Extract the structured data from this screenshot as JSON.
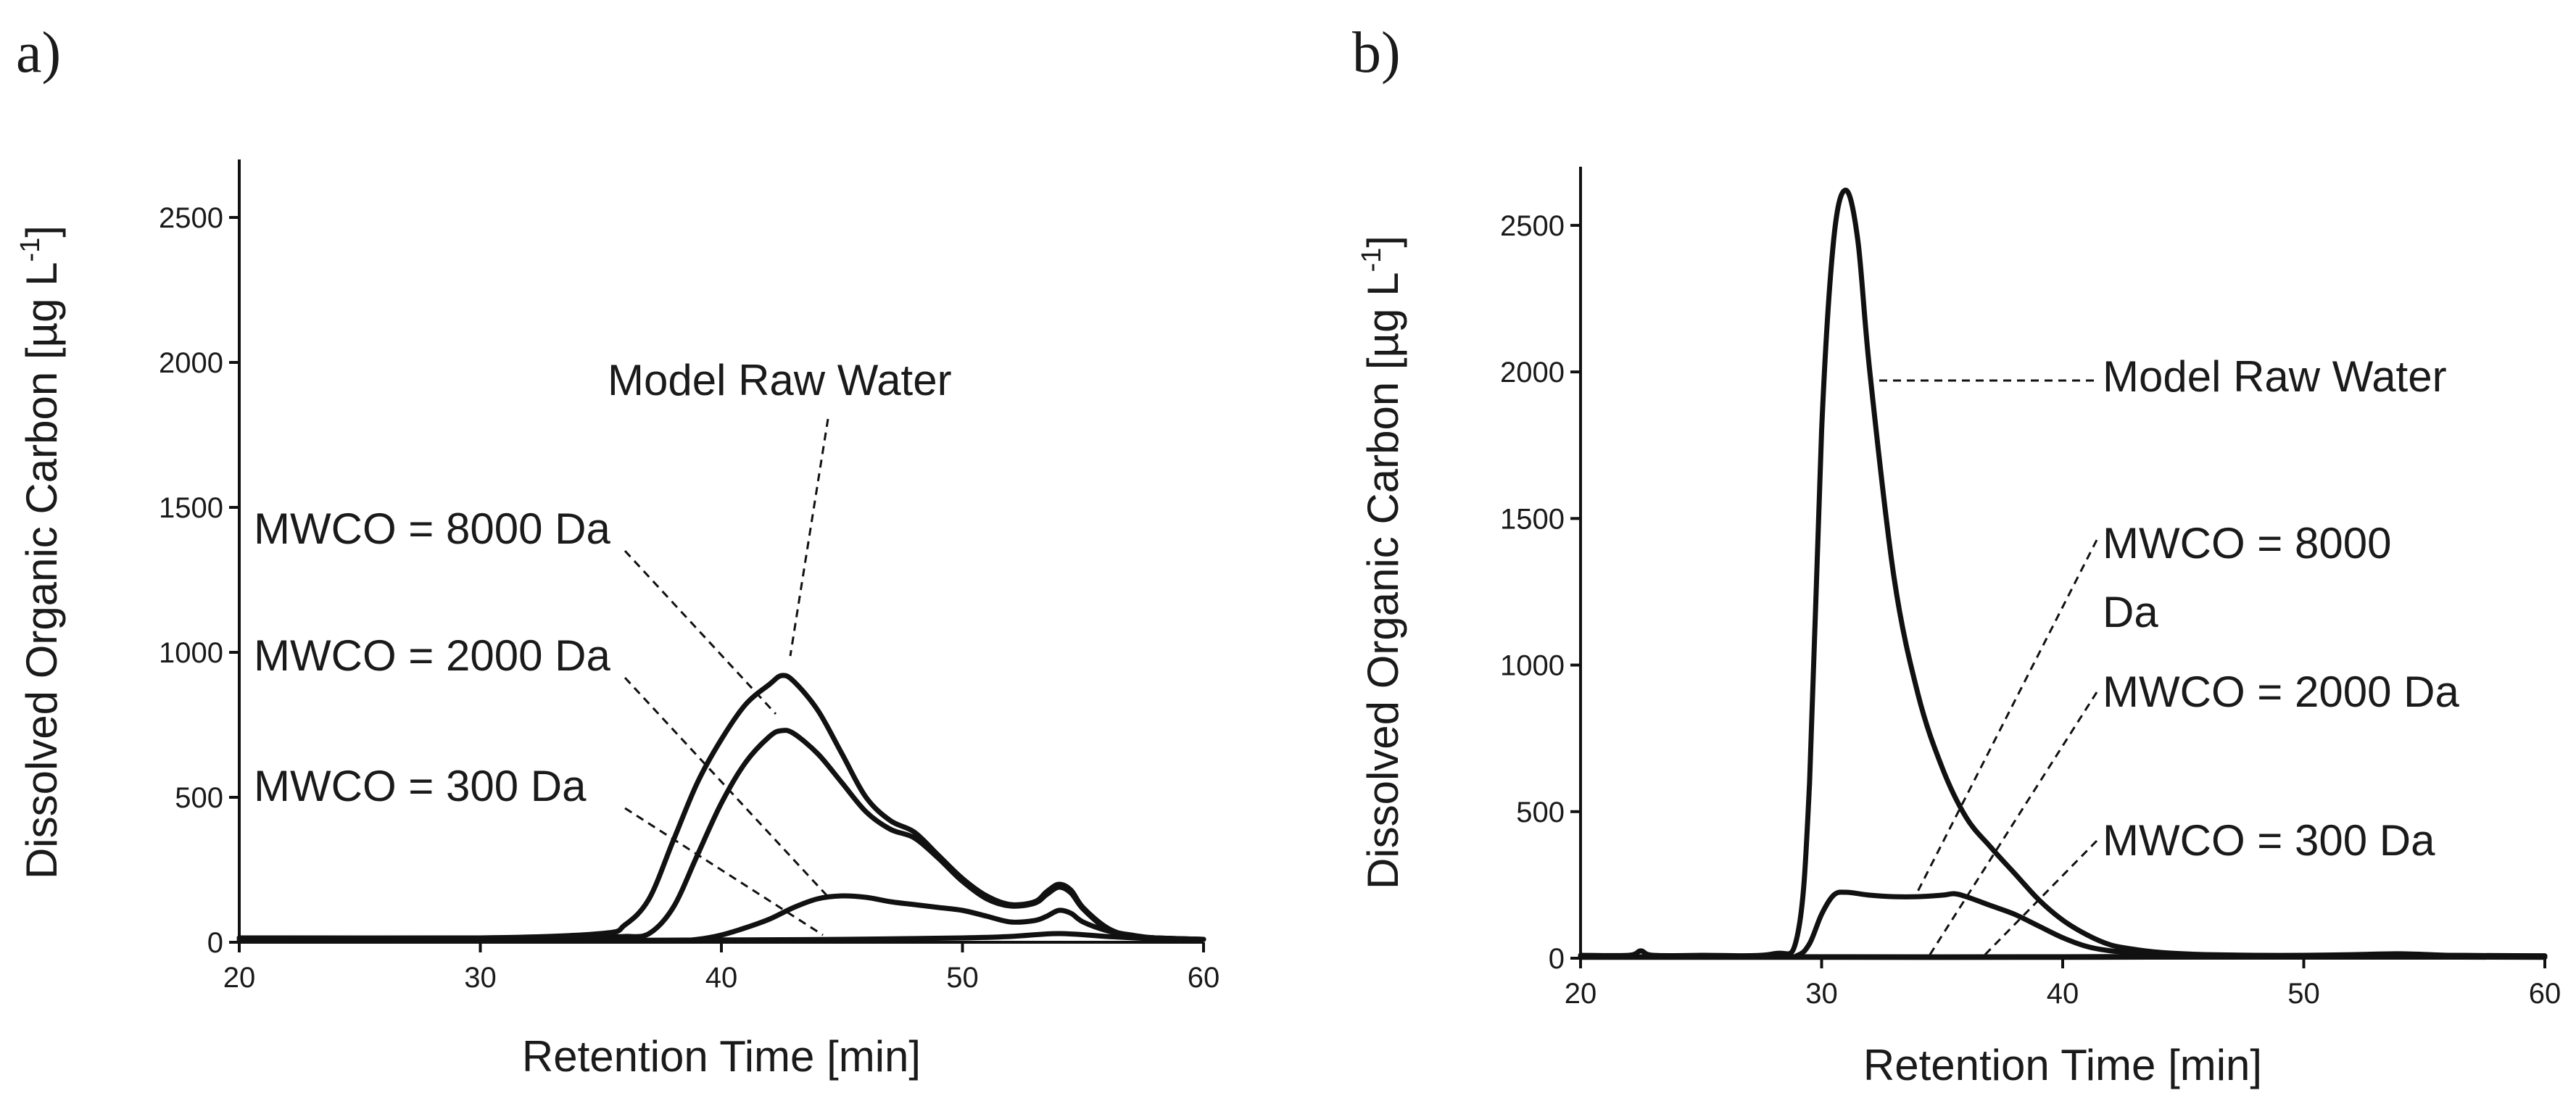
{
  "figure": {
    "panel_labels": [
      "a)",
      "b)"
    ]
  },
  "chart_data": [
    {
      "type": "line",
      "panel": "a)",
      "xlabel": "Retention Time [min]",
      "ylabel": "Dissolved Organic Carbon [µg L",
      "ylabel_sup": "-1",
      "ylabel_close": "]",
      "xlim": [
        20,
        60
      ],
      "ylim": [
        0,
        2700
      ],
      "xticks": [
        20,
        30,
        40,
        50,
        60
      ],
      "yticks": [
        0,
        500,
        1000,
        1500,
        2000,
        2500
      ],
      "grid": false,
      "series": [
        {
          "name": "Model Raw Water",
          "x": [
            20,
            30,
            35,
            36,
            37,
            38,
            39,
            40,
            41,
            42,
            42.5,
            43,
            44,
            45,
            46,
            47,
            48,
            49,
            50,
            51,
            52,
            53,
            53.5,
            54,
            54.5,
            55,
            56,
            57,
            58,
            60
          ],
          "values": [
            15,
            15,
            30,
            60,
            150,
            350,
            550,
            700,
            820,
            890,
            920,
            900,
            800,
            650,
            500,
            420,
            380,
            300,
            220,
            160,
            130,
            140,
            175,
            200,
            180,
            120,
            50,
            20,
            15,
            10
          ]
        },
        {
          "name": "MWCO = 8000 Da",
          "x": [
            20,
            30,
            35,
            36,
            37,
            38,
            39,
            40,
            41,
            42,
            42.5,
            43,
            44,
            45,
            46,
            47,
            48,
            49,
            50,
            51,
            52,
            53,
            53.5,
            54,
            54.5,
            55,
            56,
            57,
            58,
            60
          ],
          "values": [
            15,
            15,
            20,
            20,
            30,
            120,
            300,
            480,
            620,
            710,
            730,
            720,
            650,
            550,
            450,
            390,
            360,
            290,
            210,
            150,
            125,
            135,
            165,
            190,
            170,
            115,
            45,
            20,
            15,
            10
          ]
        },
        {
          "name": "MWCO = 2000 Da",
          "x": [
            20,
            35,
            38,
            39,
            40,
            41,
            42,
            43,
            44,
            45,
            46,
            47,
            48,
            49,
            50,
            51,
            52,
            53,
            53.5,
            54,
            54.5,
            55,
            56,
            57,
            58,
            60
          ],
          "values": [
            5,
            5,
            5,
            10,
            25,
            50,
            80,
            120,
            150,
            160,
            155,
            140,
            130,
            120,
            110,
            90,
            70,
            75,
            90,
            110,
            100,
            70,
            40,
            25,
            15,
            10
          ]
        },
        {
          "name": "MWCO = 300 Da",
          "x": [
            20,
            30,
            40,
            45,
            50,
            52,
            54,
            56,
            58,
            60
          ],
          "values": [
            5,
            5,
            8,
            10,
            15,
            20,
            30,
            20,
            12,
            10
          ]
        }
      ],
      "annotations": [
        "Model Raw Water",
        "MWCO = 8000 Da",
        "MWCO = 2000 Da",
        "MWCO = 300 Da"
      ]
    },
    {
      "type": "line",
      "panel": "b)",
      "xlabel": "Retention Time [min]",
      "ylabel": "Dissolved Organic Carbon [µg L",
      "ylabel_sup": "-1",
      "ylabel_close": "]",
      "xlim": [
        20,
        60
      ],
      "ylim": [
        0,
        2700
      ],
      "xticks": [
        20,
        30,
        40,
        50,
        60
      ],
      "yticks": [
        0,
        500,
        1000,
        1500,
        2000,
        2500
      ],
      "grid": false,
      "series": [
        {
          "name": "Model Raw Water",
          "x": [
            20,
            22,
            22.5,
            23,
            25,
            28,
            29,
            29.5,
            30,
            30.5,
            31,
            31.5,
            32,
            33,
            34,
            35,
            36,
            37,
            38,
            39,
            40,
            41,
            42,
            43,
            44,
            45,
            46,
            48,
            50,
            52,
            54,
            56,
            58,
            60
          ],
          "values": [
            10,
            10,
            25,
            10,
            10,
            15,
            80,
            600,
            1800,
            2450,
            2620,
            2450,
            2000,
            1300,
            900,
            650,
            480,
            380,
            290,
            200,
            130,
            80,
            45,
            30,
            20,
            15,
            12,
            10,
            10,
            12,
            15,
            10,
            8,
            8
          ]
        },
        {
          "name": "MWCO = 8000 Da",
          "x": [
            20,
            28,
            29,
            29.5,
            30,
            30.5,
            31,
            32,
            33,
            34,
            35,
            35.5,
            36,
            37,
            38,
            39,
            40,
            41,
            42,
            43,
            44,
            45,
            50,
            55,
            60
          ],
          "values": [
            5,
            5,
            10,
            50,
            150,
            215,
            225,
            215,
            210,
            210,
            215,
            220,
            210,
            180,
            150,
            110,
            70,
            40,
            25,
            20,
            15,
            12,
            8,
            10,
            8
          ]
        },
        {
          "name": "MWCO = 2000 Da",
          "x": [
            20,
            30,
            40,
            50,
            60
          ],
          "values": [
            5,
            5,
            5,
            8,
            5
          ]
        },
        {
          "name": "MWCO = 300 Da",
          "x": [
            20,
            30,
            40,
            50,
            60
          ],
          "values": [
            3,
            3,
            3,
            5,
            3
          ]
        }
      ],
      "annotations": [
        "Model Raw Water",
        "MWCO = 8000",
        "Da",
        "MWCO = 2000 Da",
        "MWCO = 300 Da"
      ]
    }
  ]
}
